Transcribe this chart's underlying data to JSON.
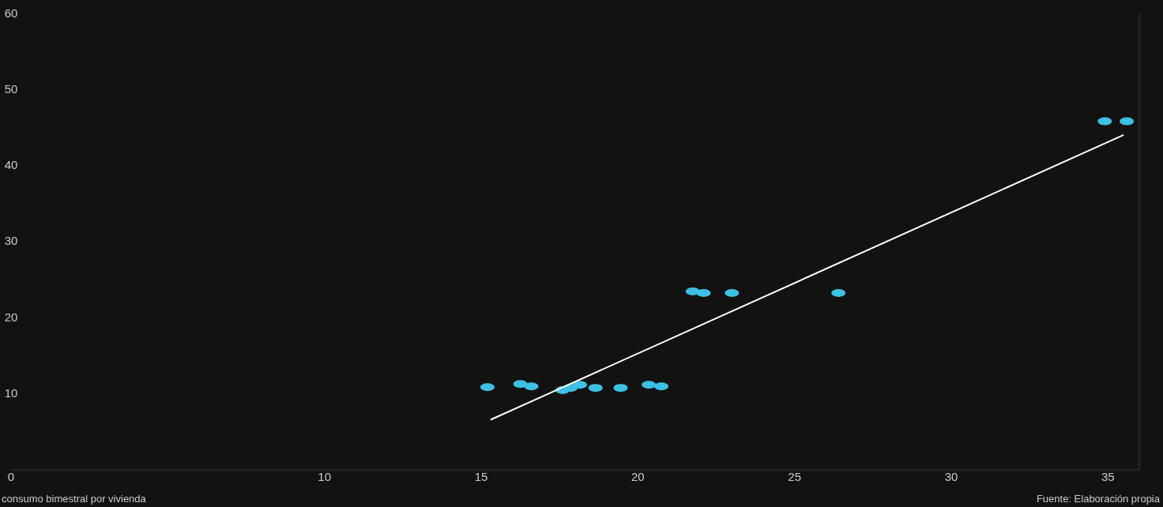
{
  "chart_data": {
    "type": "scatter",
    "xlabel": "consumo bimestral por vivienda",
    "annotations": [
      "Fuente: Elaboración propia"
    ],
    "xlim": [
      0,
      36
    ],
    "xticks": [
      0,
      10,
      15,
      20,
      25,
      30,
      35
    ],
    "ylim": [
      0,
      60
    ],
    "yticks": [
      10,
      20,
      30,
      40,
      50,
      60
    ],
    "grid": false,
    "marker": "circle",
    "series": [
      {
        "color": "#3cc0e4",
        "x": [
          15.2,
          16.25,
          16.6,
          17.6,
          17.85,
          18.15,
          18.65,
          19.45,
          20.35,
          20.75,
          21.75,
          22.1,
          23.0,
          26.4,
          34.9,
          35.6
        ],
        "values": [
          10.9,
          11.3,
          11.0,
          10.5,
          10.8,
          11.2,
          10.8,
          10.8,
          11.2,
          11.0,
          23.5,
          23.3,
          23.3,
          23.3,
          45.9,
          45.9
        ]
      },
      {
        "type": "line",
        "color": "#ffffff",
        "marker": "none",
        "x": [
          15.3,
          35.5
        ],
        "values": [
          6.6,
          44.1
        ]
      }
    ]
  }
}
